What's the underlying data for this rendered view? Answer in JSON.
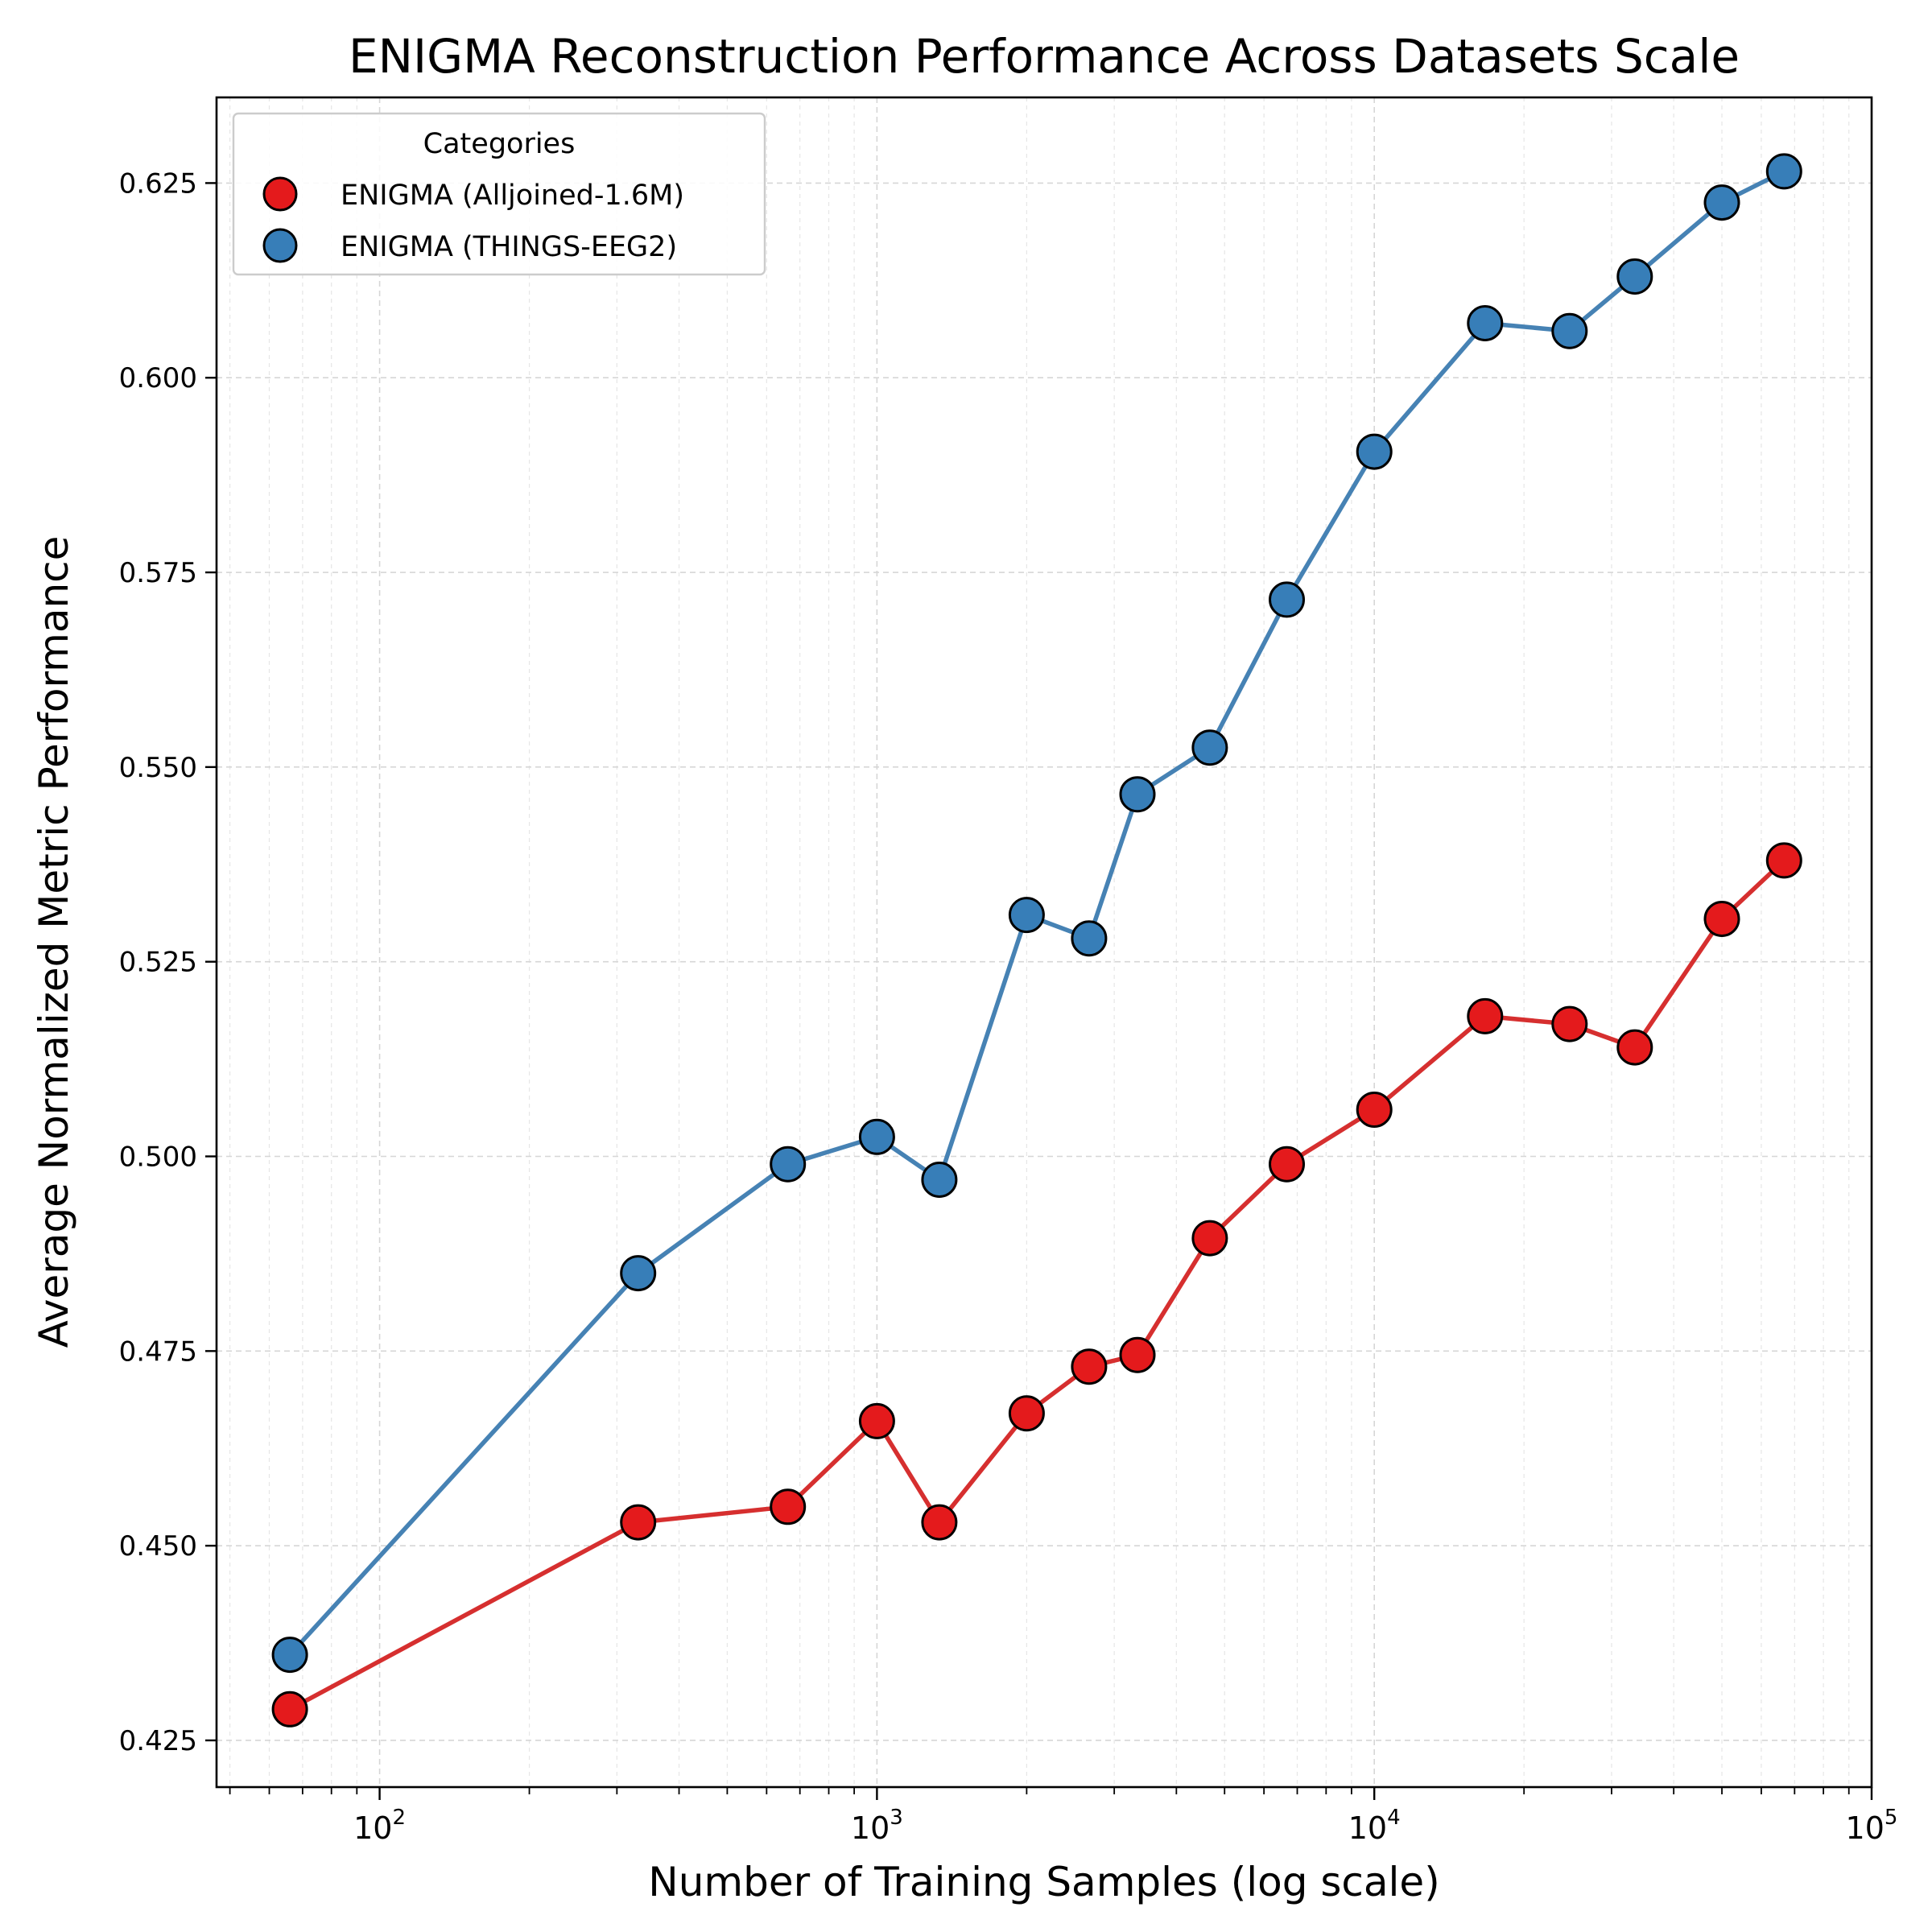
{
  "chart_data": {
    "type": "line",
    "title": "ENIGMA Reconstruction Performance Across Datasets Scale",
    "xlabel": "Number of Training Samples (log scale)",
    "ylabel": "Average Normalized Metric Performance",
    "xscale": "log",
    "xlim": [
      47,
      100000
    ],
    "ylim": [
      0.419,
      0.636
    ],
    "xticks": [
      {
        "value": 100,
        "base": "10",
        "exp": "2"
      },
      {
        "value": 1000,
        "base": "10",
        "exp": "3"
      },
      {
        "value": 10000,
        "base": "10",
        "exp": "4"
      },
      {
        "value": 100000,
        "base": "10",
        "exp": "5"
      }
    ],
    "yticks": [
      0.425,
      0.45,
      0.475,
      0.5,
      0.525,
      0.55,
      0.575,
      0.6,
      0.625
    ],
    "ytick_labels": [
      "0.425",
      "0.450",
      "0.475",
      "0.500",
      "0.525",
      "0.550",
      "0.575",
      "0.600",
      "0.625"
    ],
    "grid": true,
    "legend": {
      "title": "Categories",
      "position": "top-left"
    },
    "x": [
      66,
      331,
      662,
      1000,
      1335,
      2000,
      2670,
      3340,
      4670,
      6670,
      10000,
      16700,
      24700,
      33400,
      50000,
      66700
    ],
    "series": [
      {
        "name": "ENIGMA (Alljoined-1.6M)",
        "color": "#e41a1c",
        "line_color": "#d62f2f",
        "values": [
          0.429,
          0.453,
          0.455,
          0.466,
          0.453,
          0.467,
          0.473,
          0.4745,
          0.4895,
          0.499,
          0.506,
          0.518,
          0.517,
          0.514,
          0.5305,
          0.538
        ]
      },
      {
        "name": "ENIGMA (THINGS-EEG2)",
        "color": "#377eb8",
        "line_color": "#4682b4",
        "values": [
          0.436,
          0.485,
          0.499,
          0.5025,
          0.497,
          0.531,
          0.528,
          0.5465,
          0.5525,
          0.5715,
          0.5905,
          0.607,
          0.606,
          0.613,
          0.6225,
          0.6265
        ]
      }
    ]
  }
}
